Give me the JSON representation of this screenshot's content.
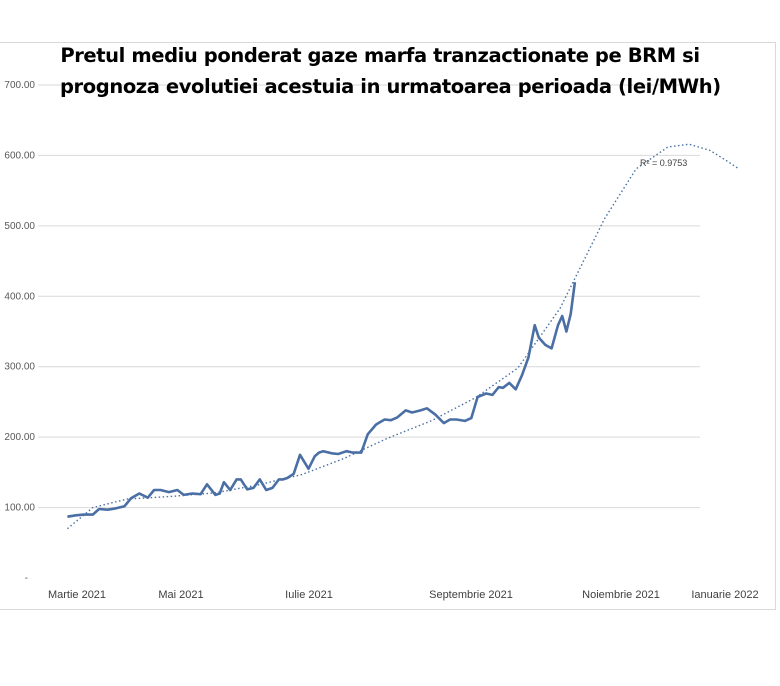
{
  "chart_data": {
    "type": "line",
    "title_line1": "Pretul mediu ponderat gaze marfa tranzactionate pe BRM si",
    "title_line2": "prognoza evolutiei acestuia in urmatoarea perioada (lei/MWh)",
    "ylim": [
      0,
      700
    ],
    "y_ticks": [
      "-",
      "100.00",
      "200.00",
      "300.00",
      "400.00",
      "500.00",
      "600.00",
      "700.00"
    ],
    "x_ticks": [
      "Martie 2021",
      "Mai 2021",
      "Iulie 2021",
      "Septembrie 2021",
      "Noiembrie 2021",
      "Ianuarie 2022"
    ],
    "grid": true,
    "trendline_label": "R² = 0.9753",
    "series": [
      {
        "color": "#4a6fa5",
        "x": [
          "2021-02-24",
          "2021-02-28",
          "2021-03-04",
          "2021-03-08",
          "2021-03-11",
          "2021-03-15",
          "2021-03-19",
          "2021-03-23",
          "2021-03-26",
          "2021-03-30",
          "2021-04-03",
          "2021-04-06",
          "2021-04-09",
          "2021-04-13",
          "2021-04-17",
          "2021-04-20",
          "2021-04-24",
          "2021-04-28",
          "2021-05-01",
          "2021-05-05",
          "2021-05-07",
          "2021-05-09",
          "2021-05-12",
          "2021-05-15",
          "2021-05-17",
          "2021-05-20",
          "2021-05-23",
          "2021-05-26",
          "2021-05-29",
          "2021-06-01",
          "2021-06-04",
          "2021-06-06",
          "2021-06-08",
          "2021-06-11",
          "2021-06-14",
          "2021-06-18",
          "2021-06-21",
          "2021-06-23",
          "2021-06-25",
          "2021-06-29",
          "2021-07-02",
          "2021-07-06",
          "2021-07-09",
          "2021-07-13",
          "2021-07-16",
          "2021-07-20",
          "2021-07-24",
          "2021-07-27",
          "2021-07-30",
          "2021-08-03",
          "2021-08-06",
          "2021-08-10",
          "2021-08-13",
          "2021-08-17",
          "2021-08-21",
          "2021-08-24",
          "2021-08-27",
          "2021-08-31",
          "2021-09-03",
          "2021-09-06",
          "2021-09-10",
          "2021-09-13",
          "2021-09-16",
          "2021-09-18",
          "2021-09-21",
          "2021-09-24",
          "2021-09-27",
          "2021-09-30",
          "2021-10-03",
          "2021-10-05",
          "2021-10-08",
          "2021-10-11",
          "2021-10-14",
          "2021-10-16",
          "2021-10-18",
          "2021-10-20",
          "2021-10-22"
        ],
        "values": [
          87,
          89,
          90,
          90,
          98,
          97,
          99,
          102,
          113,
          120,
          114,
          125,
          125,
          122,
          125,
          118,
          120,
          119,
          133,
          118,
          120,
          136,
          125,
          140,
          140,
          126,
          128,
          140,
          125,
          128,
          140,
          140,
          142,
          148,
          175,
          155,
          173,
          178,
          180,
          177,
          176,
          180,
          178,
          178,
          204,
          218,
          225,
          224,
          228,
          238,
          235,
          238,
          241,
          232,
          220,
          225,
          225,
          223,
          227,
          257,
          262,
          260,
          271,
          270,
          277,
          268,
          288,
          313,
          359,
          341,
          331,
          326,
          359,
          372,
          350,
          375,
          420
        ]
      }
    ],
    "trendline": {
      "style": "dotted",
      "x": [
        "2021-02-24",
        "2021-03-08",
        "2021-03-24",
        "2021-04-15",
        "2021-05-05",
        "2021-05-25",
        "2021-06-15",
        "2021-07-05",
        "2021-07-25",
        "2021-08-15",
        "2021-09-05",
        "2021-09-25",
        "2021-10-15",
        "2021-11-05",
        "2021-11-20",
        "2021-12-05",
        "2021-12-15",
        "2021-12-25",
        "2022-01-02",
        "2022-01-07"
      ],
      "values": [
        70,
        100,
        112,
        116,
        121,
        132,
        147,
        170,
        198,
        223,
        256,
        298,
        383,
        510,
        581,
        612,
        616,
        607,
        592,
        582
      ]
    }
  }
}
